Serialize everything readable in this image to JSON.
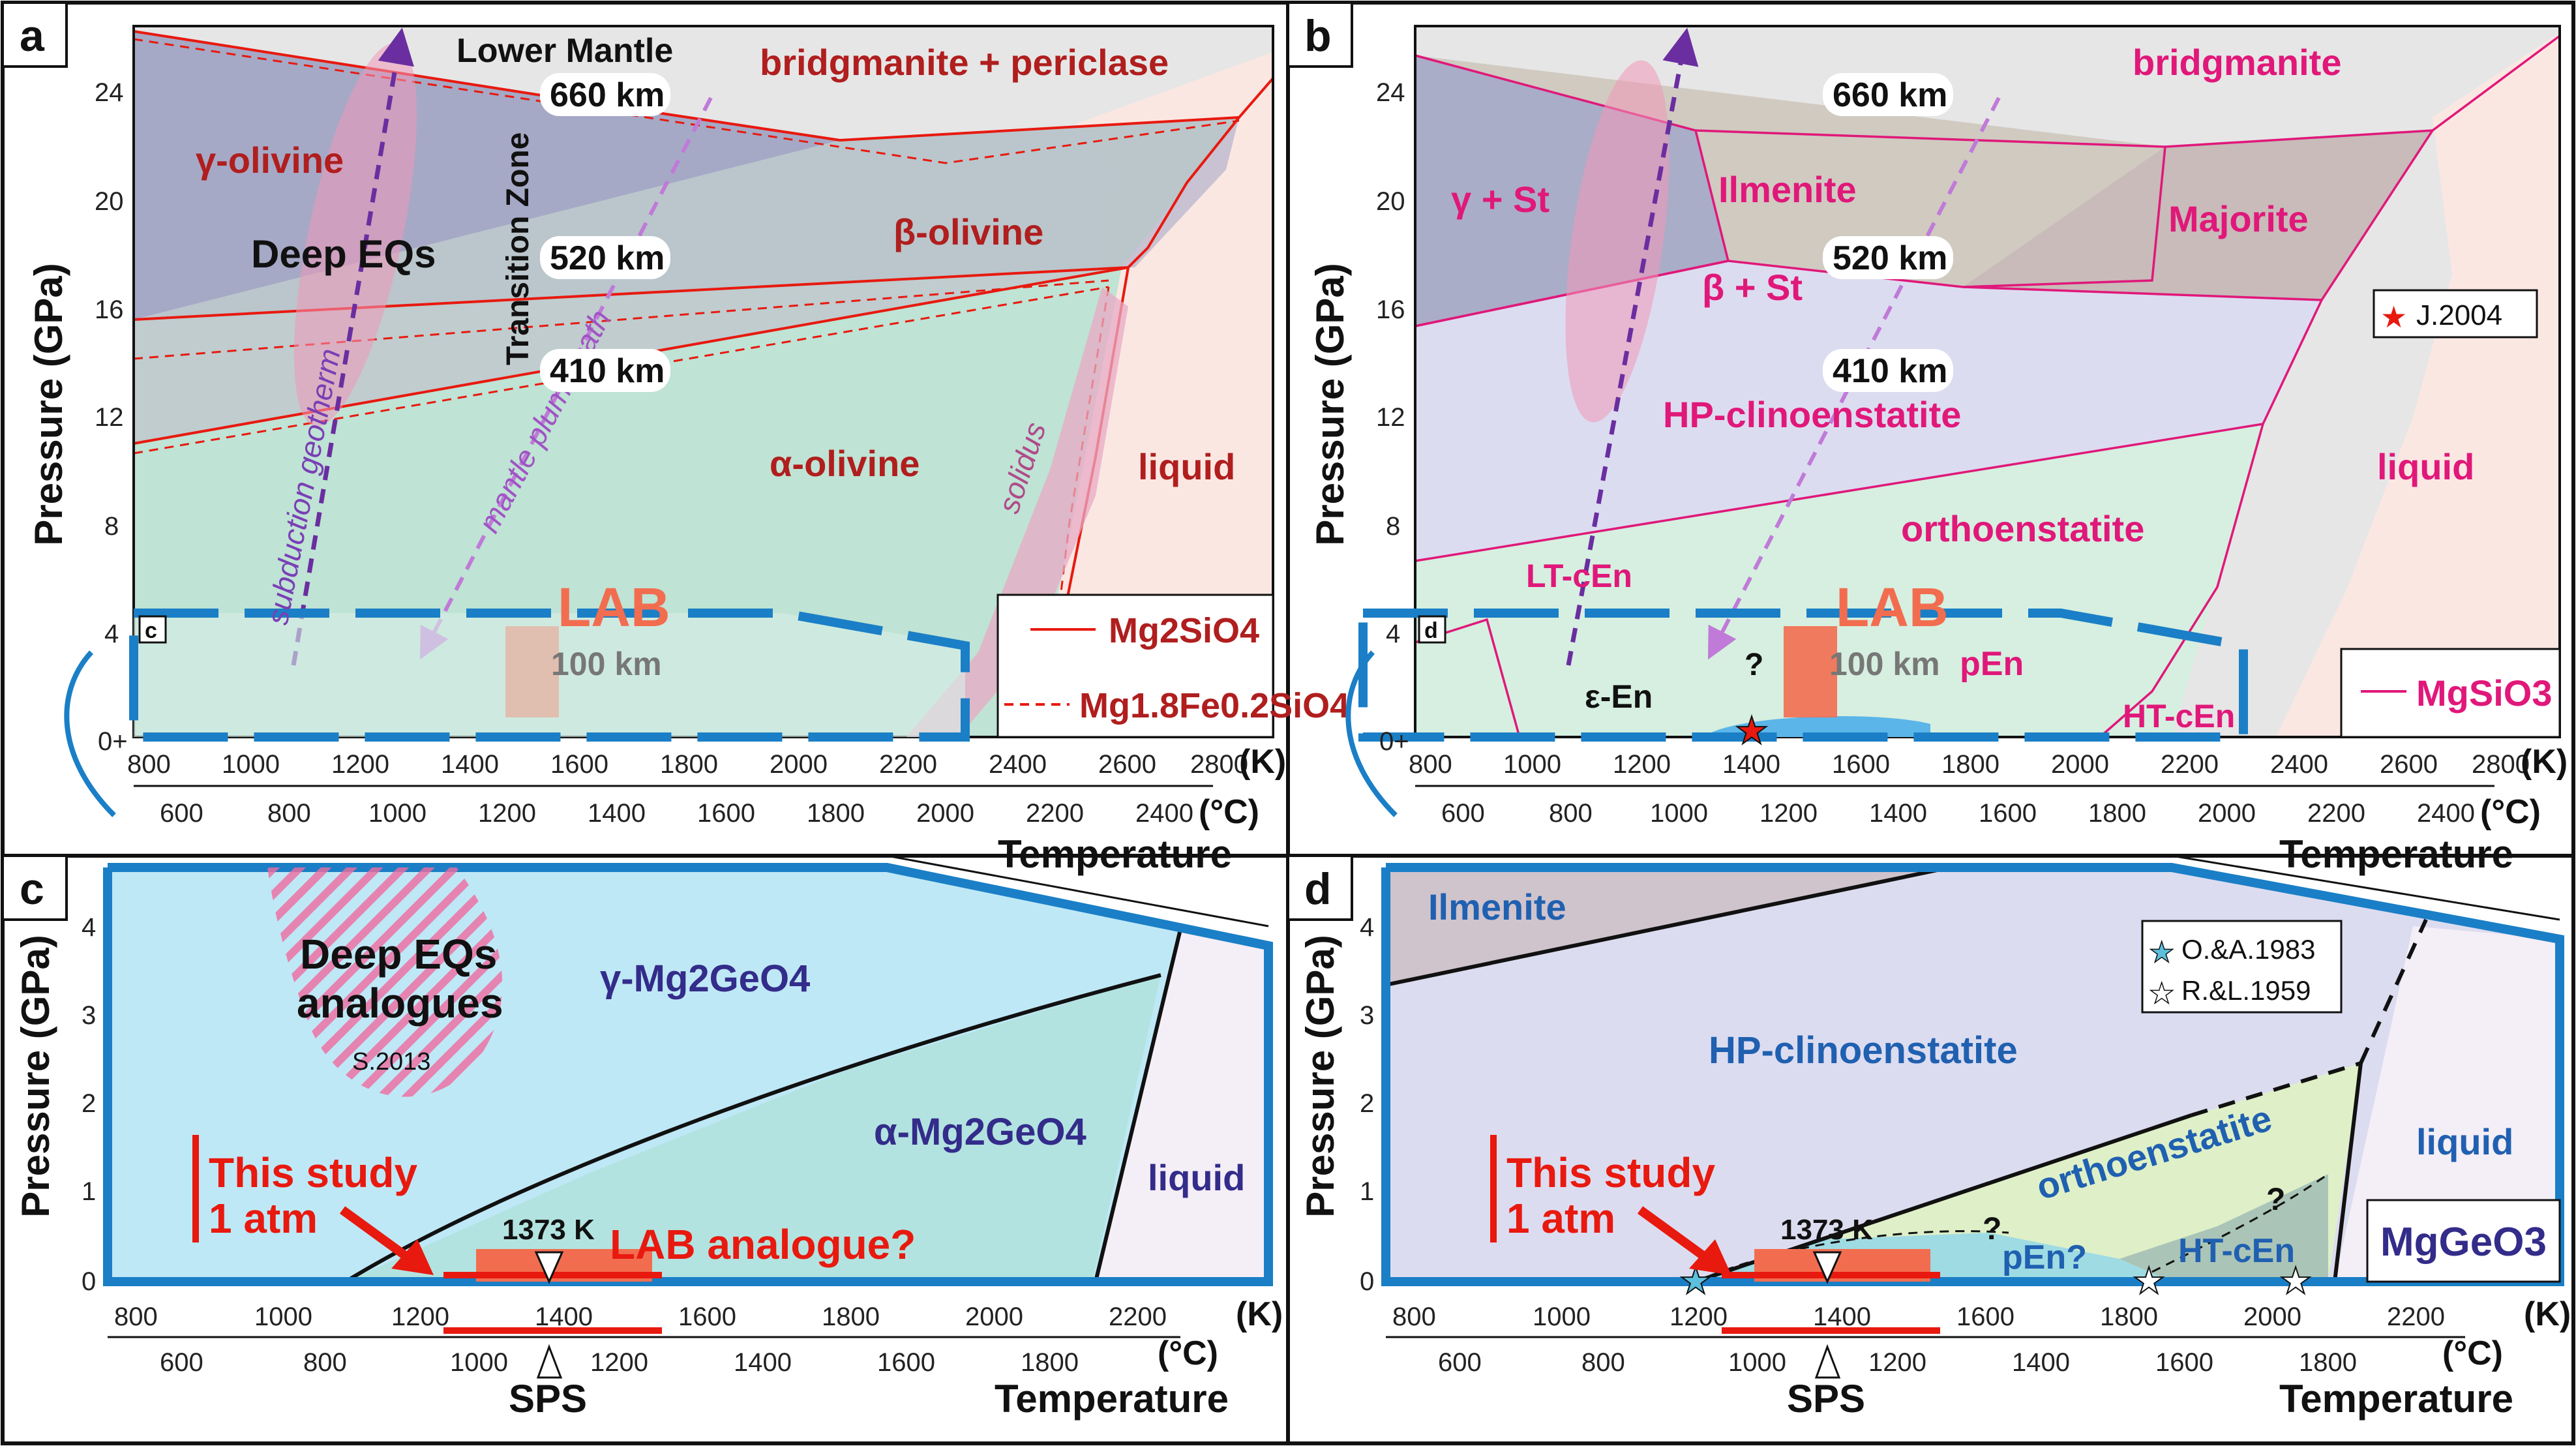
{
  "panels": {
    "a": {
      "letter": "a",
      "phases": {
        "lower_mantle": "Lower Mantle",
        "bridgmanite_periclase": "bridgmanite + periclase",
        "gamma_olivine": "γ-olivine",
        "beta_olivine": "β-olivine",
        "alpha_olivine": "α-olivine",
        "liquid": "liquid",
        "deep_eqs": "Deep EQs",
        "transition_zone": "Transition Zone",
        "subduction_geotherm": "subduction geotherm",
        "mantle_plume_path": "mantle plume path",
        "solidus": "solidus",
        "lab": "LAB",
        "km100": "100 km",
        "inset_letter": "c"
      },
      "depths": [
        "660 km",
        "520 km",
        "410 km"
      ],
      "legend": {
        "solid": "Mg2SiO4",
        "dashed": "Mg1.8Fe0.2SiO4"
      },
      "y_ticks": [
        "24",
        "20",
        "16",
        "12",
        "8",
        "4",
        "0+"
      ],
      "x_ticks_K": [
        "800",
        "1000",
        "1200",
        "1400",
        "1600",
        "1800",
        "2000",
        "2200",
        "2400",
        "2600",
        "2800"
      ],
      "x_ticks_C": [
        "600",
        "800",
        "1000",
        "1200",
        "1400",
        "1600",
        "1800",
        "2000",
        "2200",
        "2400"
      ]
    },
    "b": {
      "letter": "b",
      "phases": {
        "bridgmanite": "bridgmanite",
        "gamma_st": "γ + St",
        "ilmenite": "Ilmenite",
        "majorite": "Majorite",
        "beta_st": "β + St",
        "hp_clinoenstatite": "HP-clinoenstatite",
        "liquid": "liquid",
        "orthoenstatite": "orthoenstatite",
        "lt_cen": "LT-cEn",
        "lab": "LAB",
        "km100": "100 km",
        "pen": "pEn",
        "epsilon_en": "ε-En",
        "ht_cen": "HT-cEn",
        "question": "?",
        "inset_letter": "d"
      },
      "depths": [
        "660 km",
        "520 km",
        "410 km"
      ],
      "legend": {
        "solid": "MgSiO3",
        "star": "J.2004"
      },
      "y_ticks": [
        "24",
        "20",
        "16",
        "12",
        "8",
        "4",
        "0+"
      ],
      "x_ticks_K": [
        "800",
        "1000",
        "1200",
        "1400",
        "1600",
        "1800",
        "2000",
        "2200",
        "2400",
        "2600",
        "2800"
      ],
      "x_ticks_C": [
        "600",
        "800",
        "1000",
        "1200",
        "1400",
        "1600",
        "1800",
        "2000",
        "2200",
        "2400"
      ]
    },
    "c": {
      "letter": "c",
      "phases": {
        "deep_eqs_analogues_1": "Deep EQs",
        "deep_eqs_analogues_2": "analogues",
        "s2013": "S.2013",
        "gamma_mg2geo4": "γ-Mg2GeO4",
        "alpha_mg2geo4": "α-Mg2GeO4",
        "liquid": "liquid",
        "this_study_1": "This study",
        "this_study_2": "1 atm",
        "temp_1373": "1373 K",
        "lab_analogue": "LAB analogue?",
        "sps": "SPS"
      },
      "y_ticks": [
        "4",
        "3",
        "2",
        "1",
        "0"
      ],
      "x_ticks_K": [
        "800",
        "1000",
        "1200",
        "1400",
        "1600",
        "1800",
        "2000",
        "2200"
      ],
      "x_ticks_C": [
        "600",
        "800",
        "1000",
        "1200",
        "1400",
        "1600",
        "1800"
      ]
    },
    "d": {
      "letter": "d",
      "phases": {
        "ilmenite": "Ilmenite",
        "hp_clinoenstatite": "HP-clinoenstatite",
        "orthoenstatite": "orthoenstatite",
        "liquid": "liquid",
        "pen": "pEn?",
        "ht_cen": "HT-cEn",
        "question": "?",
        "this_study_1": "This study",
        "this_study_2": "1 atm",
        "temp_1373": "1373 K",
        "sps": "SPS",
        "compound": "MgGeO3"
      },
      "legend": {
        "blue_star": "O.&A.1983",
        "white_star": "R.&L.1959"
      },
      "y_ticks": [
        "4",
        "3",
        "2",
        "1",
        "0"
      ],
      "x_ticks_K": [
        "800",
        "1000",
        "1200",
        "1400",
        "1600",
        "1800",
        "2000",
        "2200"
      ],
      "x_ticks_C": [
        "600",
        "800",
        "1000",
        "1200",
        "1400",
        "1600",
        "1800"
      ]
    }
  },
  "axes": {
    "pressure": "Pressure (GPa)",
    "temperature": "Temperature",
    "unit_K": "(K)",
    "unit_C": "(°C)"
  },
  "colors": {
    "gray_region": "#e6e6e6",
    "gamma_region": "#9fa4c4",
    "beta_region": "#b9c7c9",
    "alpha_region": "#bfe3d4",
    "liquid_region": "#fbe7e2",
    "lab_blue": "#1a7fc6",
    "c_gamma": "#bfe8f6",
    "c_alpha": "#b3e3e0",
    "d_hp": "#dcdcf0",
    "d_ortho": "#dff0c8",
    "accent_red": "#e8190f"
  }
}
